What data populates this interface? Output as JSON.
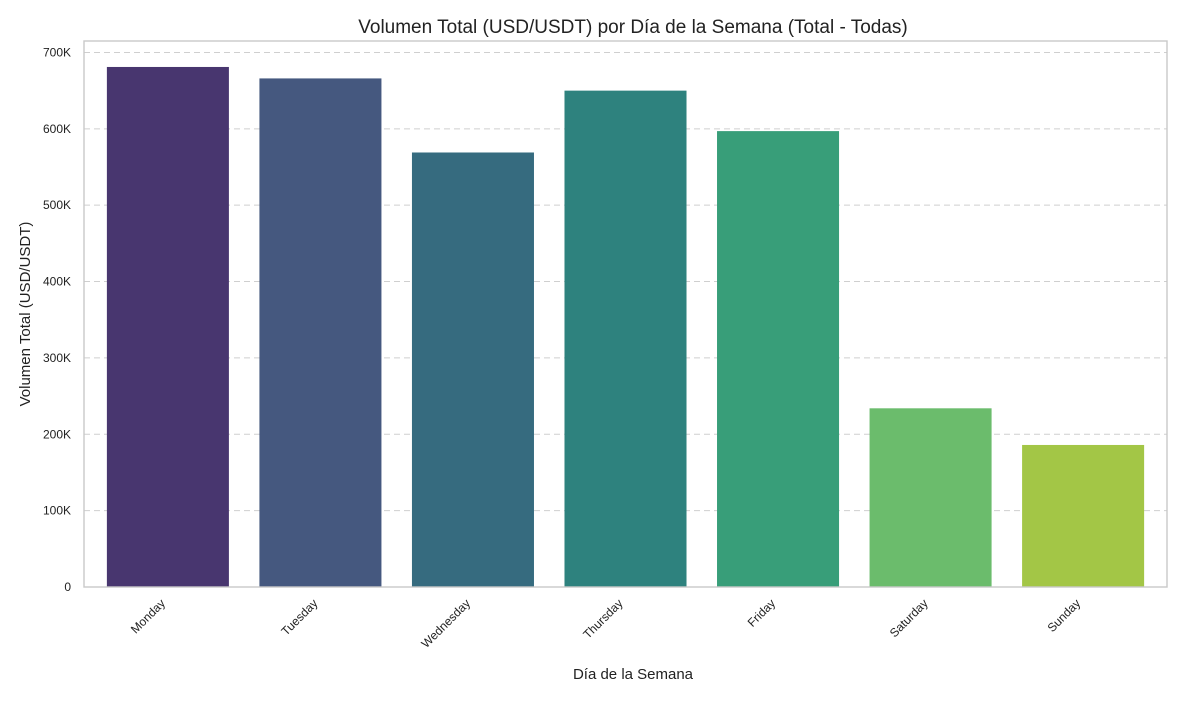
{
  "chart_data": {
    "type": "bar",
    "title": "Volumen Total (USD/USDT) por Día de la Semana (Total - Todas)",
    "xlabel": "Día de la Semana",
    "ylabel": "Volumen Total (USD/USDT)",
    "categories": [
      "Monday",
      "Tuesday",
      "Wednesday",
      "Thursday",
      "Friday",
      "Saturday",
      "Sunday"
    ],
    "values": [
      681000,
      666000,
      569000,
      650000,
      597000,
      234000,
      186000
    ],
    "colors": [
      "#48366f",
      "#45587f",
      "#366b7f",
      "#2e827e",
      "#389e79",
      "#6bbc6c",
      "#a3c646"
    ],
    "ylim": [
      0,
      715000
    ],
    "yticks": [
      0,
      100000,
      200000,
      300000,
      400000,
      500000,
      600000,
      700000
    ],
    "ytick_labels": [
      "0",
      "100K",
      "200K",
      "300K",
      "400K",
      "500K",
      "600K",
      "700K"
    ],
    "grid": "y-dashed",
    "legend": "none"
  }
}
